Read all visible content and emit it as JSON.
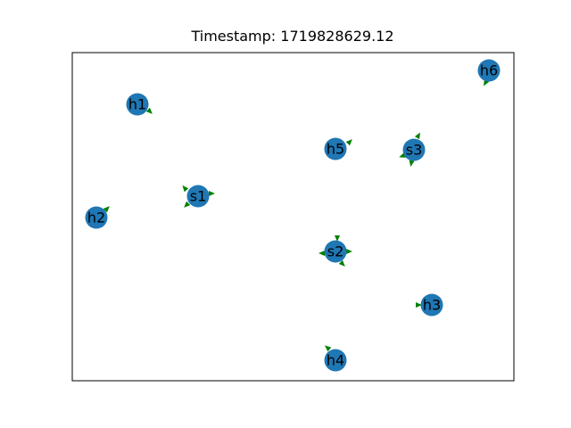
{
  "title": "Timestamp: 1719828629.12",
  "colors": {
    "node": "#1f77b4",
    "arrow": "#008000",
    "frame": "#000000",
    "label": "#000000"
  },
  "nodes": [
    {
      "id": "h1",
      "label": "h1"
    },
    {
      "id": "h2",
      "label": "h2"
    },
    {
      "id": "h3",
      "label": "h3"
    },
    {
      "id": "h4",
      "label": "h4"
    },
    {
      "id": "h5",
      "label": "h5"
    },
    {
      "id": "h6",
      "label": "h6"
    },
    {
      "id": "s1",
      "label": "s1"
    },
    {
      "id": "s2",
      "label": "s2"
    },
    {
      "id": "s3",
      "label": "s3"
    }
  ]
}
